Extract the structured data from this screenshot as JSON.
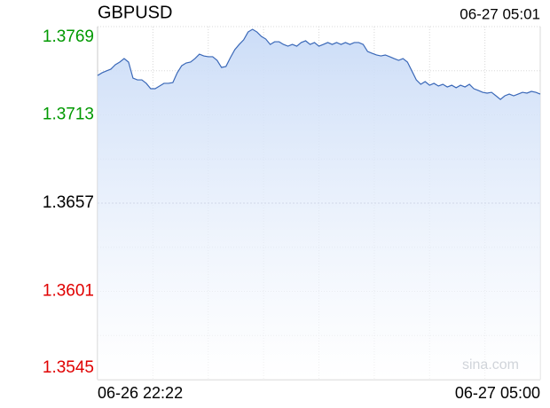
{
  "chart_data": {
    "type": "line",
    "title": "GBPUSD",
    "timestamp": "06-27 05:01",
    "watermark": "sina.com",
    "x_labels": [
      "06-26 22:22",
      "06-27 05:00"
    ],
    "ylim": [
      1.3545,
      1.3769
    ],
    "yticks": [
      1.3545,
      1.3601,
      1.3657,
      1.3713,
      1.3769
    ],
    "up_color": "#009900",
    "down_color": "#e00000",
    "line_color": "#3a68b8",
    "grid": true,
    "values": [
      1.3738,
      1.37397,
      1.37409,
      1.3742,
      1.37448,
      1.37465,
      1.37487,
      1.37465,
      1.37363,
      1.37352,
      1.37352,
      1.3733,
      1.37296,
      1.37296,
      1.37313,
      1.3733,
      1.3733,
      1.37335,
      1.37397,
      1.37442,
      1.37459,
      1.37465,
      1.37487,
      1.37515,
      1.37504,
      1.37499,
      1.37499,
      1.37476,
      1.37431,
      1.37437,
      1.37493,
      1.37544,
      1.37577,
      1.37606,
      1.37656,
      1.37673,
      1.37656,
      1.37628,
      1.37611,
      1.37577,
      1.37594,
      1.37594,
      1.37577,
      1.37566,
      1.37577,
      1.37566,
      1.37589,
      1.376,
      1.37577,
      1.37589,
      1.37566,
      1.37577,
      1.37589,
      1.37577,
      1.37589,
      1.37577,
      1.37589,
      1.37577,
      1.37589,
      1.37589,
      1.37577,
      1.37532,
      1.37521,
      1.3751,
      1.37504,
      1.3751,
      1.37499,
      1.37487,
      1.37476,
      1.37487,
      1.37465,
      1.37409,
      1.37352,
      1.37324,
      1.37341,
      1.37318,
      1.3733,
      1.37313,
      1.37324,
      1.37307,
      1.37318,
      1.37302,
      1.37318,
      1.37307,
      1.37324,
      1.37296,
      1.37285,
      1.37273,
      1.37268,
      1.37273,
      1.37251,
      1.37228,
      1.37251,
      1.37262,
      1.37251,
      1.37262,
      1.37273,
      1.37268,
      1.37279,
      1.37273,
      1.37262
    ]
  }
}
